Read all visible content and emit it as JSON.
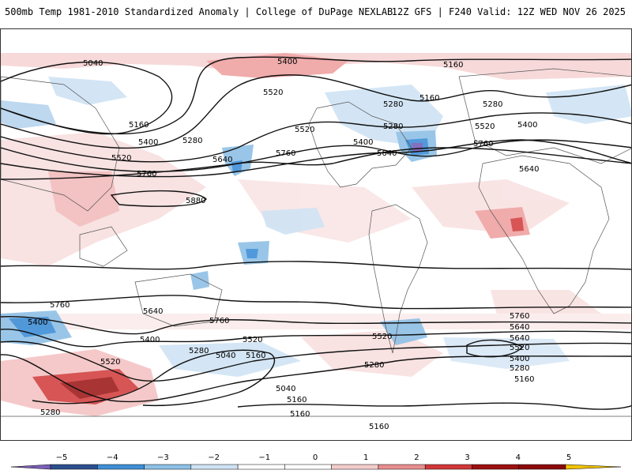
{
  "header": {
    "left_title": "500mb Temp 1981-2010 Standardized Anomaly | College of DuPage NEXLAB",
    "right_title": "12Z GFS | F240 Valid: 12Z WED NOV 26 2025"
  },
  "contour_labels": [
    "5040",
    "5400",
    "5160",
    "5520",
    "5280",
    "5160",
    "5280",
    "5400",
    "5520",
    "5640",
    "5760",
    "5160",
    "5400",
    "5280",
    "5520",
    "5760",
    "5640",
    "5520",
    "5400",
    "5640",
    "5760",
    "5880",
    "5760",
    "5640",
    "5400",
    "5760",
    "5520",
    "5280",
    "5040",
    "5160",
    "5400",
    "5520",
    "5280",
    "5640",
    "5760",
    "5640",
    "5520",
    "5400",
    "5280",
    "5160",
    "5160",
    "5040",
    "5280",
    "5160",
    "5160",
    "5520",
    "5280"
  ],
  "colorbar": {
    "ticks": [
      "−5",
      "−4",
      "−3",
      "−2",
      "−1",
      "0",
      "1",
      "2",
      "3",
      "4",
      "5"
    ],
    "colors": [
      "#7b5fb8",
      "#2c4f8f",
      "#3f8fd6",
      "#8ec0e6",
      "#cfe3f4",
      "#ffffff",
      "#ffffff",
      "#f4cccc",
      "#e88e8e",
      "#d13838",
      "#9b1111",
      "#8a0a0a",
      "#f2c200"
    ]
  }
}
